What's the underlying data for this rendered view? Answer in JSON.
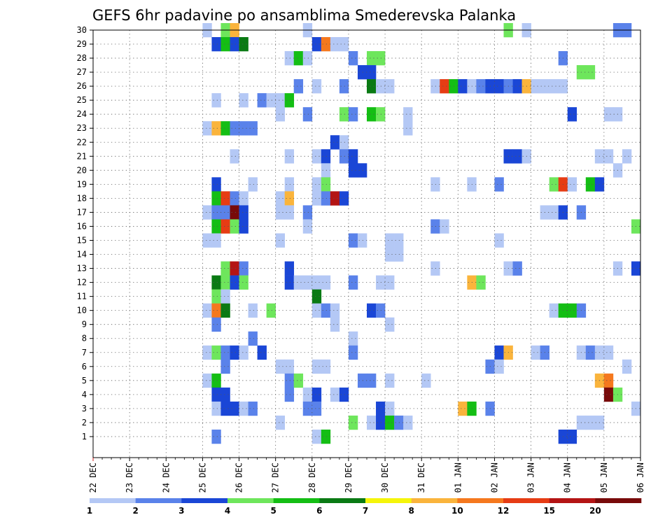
{
  "chart_data": {
    "type": "heatmap",
    "title": "GEFS 6hr padavine po ansamblima Smederevska Palanka",
    "x_start_label": "22 DEC",
    "x_tick_labels": [
      "22 DEC",
      "23 DEC",
      "24 DEC",
      "25 DEC",
      "26 DEC",
      "27 DEC",
      "28 DEC",
      "29 DEC",
      "30 DEC",
      "31 DEC",
      "01 JAN",
      "02 JAN",
      "03 JAN",
      "04 JAN",
      "05 JAN",
      "06 JAN"
    ],
    "y_tick_labels": [
      "1",
      "2",
      "3",
      "4",
      "5",
      "6",
      "7",
      "8",
      "9",
      "10",
      "11",
      "12",
      "13",
      "14",
      "15",
      "16",
      "17",
      "18",
      "19",
      "20",
      "21",
      "22",
      "23",
      "24",
      "25",
      "26",
      "27",
      "28",
      "29",
      "30"
    ],
    "grid": true,
    "colorbar": {
      "placement": "bottom",
      "thresholds": [
        "1",
        "2",
        "3",
        "4",
        "5",
        "6",
        "7",
        "8",
        "10",
        "12",
        "15",
        "20"
      ],
      "colors": [
        "#b4c8f5",
        "#5a82ea",
        "#1a46d6",
        "#6ee65c",
        "#14be14",
        "#0a7a14",
        "#f5f50a",
        "#fab43c",
        "#f5781e",
        "#e63c14",
        "#b41414",
        "#780a0a"
      ]
    },
    "cells": [
      [
        30,
        3.0,
        1
      ],
      [
        30,
        3.5,
        4
      ],
      [
        30,
        3.75,
        8
      ],
      [
        30,
        5.75,
        1
      ],
      [
        30,
        11.25,
        4
      ],
      [
        30,
        11.75,
        1
      ],
      [
        30,
        14.25,
        2
      ],
      [
        30,
        14.5,
        2
      ],
      [
        29,
        3.25,
        3
      ],
      [
        29,
        3.5,
        5
      ],
      [
        29,
        3.75,
        3
      ],
      [
        29,
        4.0,
        6
      ],
      [
        29,
        6.0,
        3
      ],
      [
        29,
        6.25,
        9
      ],
      [
        29,
        6.5,
        1
      ],
      [
        29,
        6.75,
        1
      ],
      [
        28,
        5.25,
        1
      ],
      [
        28,
        5.5,
        5
      ],
      [
        28,
        5.75,
        1
      ],
      [
        28,
        7.0,
        2
      ],
      [
        28,
        7.5,
        4
      ],
      [
        28,
        7.75,
        4
      ],
      [
        28,
        12.75,
        2
      ],
      [
        27,
        7.25,
        3
      ],
      [
        27,
        7.5,
        3
      ],
      [
        27,
        13.25,
        4
      ],
      [
        27,
        13.5,
        4
      ],
      [
        26,
        5.5,
        2
      ],
      [
        26,
        6.0,
        1
      ],
      [
        26,
        6.75,
        2
      ],
      [
        26,
        7.5,
        6
      ],
      [
        26,
        7.75,
        1
      ],
      [
        26,
        8.0,
        1
      ],
      [
        26,
        9.25,
        1
      ],
      [
        26,
        9.5,
        10
      ],
      [
        26,
        9.75,
        5
      ],
      [
        26,
        10.0,
        3
      ],
      [
        26,
        10.25,
        1
      ],
      [
        26,
        10.5,
        2
      ],
      [
        26,
        10.75,
        3
      ],
      [
        26,
        11.0,
        3
      ],
      [
        26,
        11.25,
        2
      ],
      [
        26,
        11.5,
        3
      ],
      [
        26,
        11.75,
        8
      ],
      [
        26,
        12.0,
        1
      ],
      [
        26,
        12.25,
        1
      ],
      [
        26,
        12.5,
        1
      ],
      [
        26,
        12.75,
        1
      ],
      [
        25,
        3.25,
        1
      ],
      [
        25,
        4.0,
        1
      ],
      [
        25,
        4.5,
        2
      ],
      [
        25,
        4.75,
        1
      ],
      [
        25,
        5.0,
        1
      ],
      [
        25,
        5.25,
        5
      ],
      [
        24,
        5.0,
        1
      ],
      [
        24,
        5.75,
        2
      ],
      [
        24,
        6.75,
        4
      ],
      [
        24,
        7.0,
        2
      ],
      [
        24,
        7.5,
        5
      ],
      [
        24,
        7.75,
        4
      ],
      [
        24,
        8.5,
        1
      ],
      [
        24,
        13.0,
        3
      ],
      [
        24,
        14.0,
        1
      ],
      [
        24,
        14.25,
        1
      ],
      [
        23,
        3.0,
        1
      ],
      [
        23,
        3.25,
        8
      ],
      [
        23,
        3.5,
        5
      ],
      [
        23,
        3.75,
        2
      ],
      [
        23,
        4.0,
        2
      ],
      [
        23,
        4.25,
        2
      ],
      [
        23,
        8.5,
        1
      ],
      [
        22,
        6.5,
        3
      ],
      [
        22,
        6.75,
        1
      ],
      [
        21,
        3.75,
        1
      ],
      [
        21,
        5.25,
        1
      ],
      [
        21,
        6.0,
        1
      ],
      [
        21,
        6.25,
        3
      ],
      [
        21,
        6.75,
        2
      ],
      [
        21,
        7.0,
        3
      ],
      [
        21,
        11.25,
        3
      ],
      [
        21,
        11.5,
        3
      ],
      [
        21,
        11.75,
        1
      ],
      [
        21,
        13.75,
        1
      ],
      [
        21,
        14.0,
        1
      ],
      [
        21,
        14.5,
        1
      ],
      [
        20,
        6.25,
        1
      ],
      [
        20,
        7.0,
        3
      ],
      [
        20,
        7.25,
        3
      ],
      [
        20,
        14.25,
        1
      ],
      [
        19,
        3.25,
        3
      ],
      [
        19,
        4.25,
        1
      ],
      [
        19,
        5.25,
        1
      ],
      [
        19,
        6.0,
        1
      ],
      [
        19,
        6.25,
        4
      ],
      [
        19,
        9.25,
        1
      ],
      [
        19,
        10.25,
        1
      ],
      [
        19,
        11.0,
        2
      ],
      [
        19,
        12.5,
        4
      ],
      [
        19,
        12.75,
        10
      ],
      [
        19,
        13.0,
        1
      ],
      [
        19,
        13.5,
        5
      ],
      [
        19,
        13.75,
        3
      ],
      [
        18,
        3.25,
        5
      ],
      [
        18,
        3.5,
        10
      ],
      [
        18,
        3.75,
        2
      ],
      [
        18,
        4.0,
        1
      ],
      [
        18,
        5.0,
        1
      ],
      [
        18,
        5.25,
        8
      ],
      [
        18,
        6.0,
        1
      ],
      [
        18,
        6.25,
        2
      ],
      [
        18,
        6.5,
        11
      ],
      [
        18,
        6.75,
        3
      ],
      [
        17,
        3.0,
        1
      ],
      [
        17,
        3.25,
        2
      ],
      [
        17,
        3.5,
        2
      ],
      [
        17,
        3.75,
        12
      ],
      [
        17,
        4.0,
        3
      ],
      [
        17,
        5.0,
        1
      ],
      [
        17,
        5.25,
        1
      ],
      [
        17,
        5.75,
        2
      ],
      [
        17,
        12.25,
        1
      ],
      [
        17,
        12.5,
        1
      ],
      [
        17,
        12.75,
        3
      ],
      [
        17,
        13.25,
        2
      ],
      [
        16,
        3.25,
        5
      ],
      [
        16,
        3.5,
        10
      ],
      [
        16,
        3.75,
        4
      ],
      [
        16,
        4.0,
        3
      ],
      [
        16,
        5.75,
        1
      ],
      [
        16,
        9.25,
        2
      ],
      [
        16,
        9.5,
        1
      ],
      [
        16,
        14.75,
        4
      ],
      [
        15,
        3.0,
        1
      ],
      [
        15,
        3.25,
        1
      ],
      [
        15,
        5.0,
        1
      ],
      [
        15,
        7.0,
        2
      ],
      [
        15,
        7.25,
        1
      ],
      [
        15,
        8.0,
        1
      ],
      [
        15,
        8.25,
        1
      ],
      [
        15,
        11.0,
        1
      ],
      [
        14,
        8.0,
        1
      ],
      [
        14,
        8.25,
        1
      ],
      [
        13,
        3.5,
        4
      ],
      [
        13,
        3.75,
        11
      ],
      [
        13,
        4.0,
        2
      ],
      [
        13,
        5.25,
        3
      ],
      [
        13,
        9.25,
        1
      ],
      [
        13,
        11.25,
        1
      ],
      [
        13,
        11.5,
        2
      ],
      [
        13,
        14.25,
        1
      ],
      [
        13,
        14.75,
        3
      ],
      [
        12,
        3.25,
        6
      ],
      [
        12,
        3.5,
        4
      ],
      [
        12,
        3.75,
        3
      ],
      [
        12,
        4.0,
        4
      ],
      [
        12,
        5.25,
        3
      ],
      [
        12,
        5.5,
        1
      ],
      [
        12,
        5.75,
        1
      ],
      [
        12,
        6.0,
        1
      ],
      [
        12,
        6.25,
        1
      ],
      [
        12,
        7.0,
        2
      ],
      [
        12,
        7.75,
        1
      ],
      [
        12,
        8.0,
        1
      ],
      [
        12,
        10.25,
        8
      ],
      [
        12,
        10.5,
        4
      ],
      [
        11,
        3.25,
        4
      ],
      [
        11,
        3.5,
        1
      ],
      [
        11,
        6.0,
        6
      ],
      [
        10,
        3.0,
        1
      ],
      [
        10,
        3.25,
        9
      ],
      [
        10,
        3.5,
        6
      ],
      [
        10,
        4.25,
        1
      ],
      [
        10,
        4.75,
        4
      ],
      [
        10,
        6.0,
        1
      ],
      [
        10,
        6.25,
        2
      ],
      [
        10,
        6.5,
        1
      ],
      [
        10,
        7.5,
        3
      ],
      [
        10,
        7.75,
        2
      ],
      [
        10,
        12.5,
        1
      ],
      [
        10,
        12.75,
        5
      ],
      [
        10,
        13.0,
        5
      ],
      [
        10,
        13.25,
        2
      ],
      [
        9,
        3.25,
        2
      ],
      [
        9,
        6.5,
        1
      ],
      [
        9,
        8.0,
        1
      ],
      [
        8,
        4.25,
        2
      ],
      [
        8,
        7.0,
        1
      ],
      [
        7,
        3.0,
        1
      ],
      [
        7,
        3.25,
        4
      ],
      [
        7,
        3.5,
        2
      ],
      [
        7,
        3.75,
        3
      ],
      [
        7,
        4.0,
        1
      ],
      [
        7,
        4.5,
        3
      ],
      [
        7,
        7.0,
        2
      ],
      [
        7,
        11.0,
        3
      ],
      [
        7,
        11.25,
        8
      ],
      [
        7,
        12.0,
        1
      ],
      [
        7,
        12.25,
        2
      ],
      [
        7,
        13.25,
        1
      ],
      [
        7,
        13.5,
        2
      ],
      [
        7,
        13.75,
        1
      ],
      [
        7,
        14.0,
        1
      ],
      [
        6,
        3.5,
        2
      ],
      [
        6,
        5.0,
        1
      ],
      [
        6,
        5.25,
        1
      ],
      [
        6,
        6.0,
        1
      ],
      [
        6,
        6.25,
        1
      ],
      [
        6,
        10.75,
        2
      ],
      [
        6,
        11.0,
        1
      ],
      [
        6,
        14.5,
        1
      ],
      [
        5,
        3.0,
        1
      ],
      [
        5,
        3.25,
        5
      ],
      [
        5,
        5.25,
        2
      ],
      [
        5,
        5.5,
        4
      ],
      [
        5,
        7.25,
        2
      ],
      [
        5,
        7.5,
        2
      ],
      [
        5,
        8.0,
        1
      ],
      [
        5,
        9.0,
        1
      ],
      [
        5,
        13.75,
        8
      ],
      [
        5,
        14.0,
        9
      ],
      [
        4,
        3.25,
        3
      ],
      [
        4,
        3.5,
        3
      ],
      [
        4,
        5.25,
        2
      ],
      [
        4,
        5.75,
        1
      ],
      [
        4,
        6.0,
        3
      ],
      [
        4,
        6.5,
        1
      ],
      [
        4,
        6.75,
        3
      ],
      [
        4,
        14.0,
        12
      ],
      [
        4,
        14.25,
        4
      ],
      [
        3,
        3.25,
        1
      ],
      [
        3,
        3.5,
        3
      ],
      [
        3,
        3.75,
        3
      ],
      [
        3,
        4.0,
        1
      ],
      [
        3,
        4.25,
        2
      ],
      [
        3,
        5.75,
        2
      ],
      [
        3,
        6.0,
        2
      ],
      [
        3,
        7.75,
        3
      ],
      [
        3,
        8.0,
        1
      ],
      [
        3,
        10.0,
        8
      ],
      [
        3,
        10.25,
        5
      ],
      [
        3,
        10.75,
        2
      ],
      [
        3,
        14.75,
        1
      ],
      [
        2,
        5.0,
        1
      ],
      [
        2,
        7.0,
        4
      ],
      [
        2,
        7.5,
        1
      ],
      [
        2,
        7.75,
        3
      ],
      [
        2,
        8.0,
        5
      ],
      [
        2,
        8.25,
        2
      ],
      [
        2,
        8.5,
        1
      ],
      [
        2,
        13.25,
        1
      ],
      [
        2,
        13.5,
        1
      ],
      [
        2,
        13.75,
        1
      ],
      [
        1,
        3.25,
        2
      ],
      [
        1,
        6.0,
        1
      ],
      [
        1,
        6.25,
        5
      ],
      [
        1,
        12.75,
        3
      ],
      [
        1,
        13.0,
        3
      ]
    ]
  }
}
